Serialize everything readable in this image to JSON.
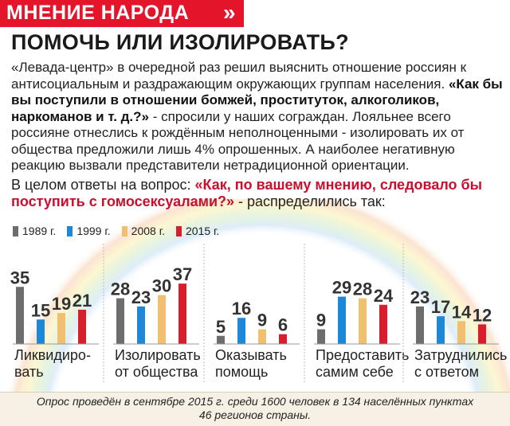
{
  "header": {
    "section": "МНЕНИЕ НАРОДА",
    "arrow": "»"
  },
  "headline": "ПОМОЧЬ ИЛИ ИЗОЛИРОВАТЬ?",
  "lead": {
    "part1": "«Левада-центр» в очередной раз решил выяснить отношение россиян к антисоциальным и раздражающим окружающих группам населения. ",
    "quote": "«Как бы вы поступили в отношении бомжей, проституток, алкоголиков, наркоманов и т. д.?»",
    "part2": " - спросили у наших сограждан. Лояльнее всего россияне отнеслись к рождённым неполноценными - изолировать их от общества предложили лишь 4% опрошенных. А наиболее негативную реакцию вызвали представители нетрадиционной ориентации."
  },
  "question": {
    "intro": "В целом ответы на вопрос: ",
    "quote": "«Как, по вашему мнению, следовало бы поступить с гомосексуалами?»",
    "outro": " - распределились так:"
  },
  "colors": {
    "accent": "#e4142b",
    "1989": "#6d6d6d",
    "1999": "#1e88d8",
    "2008": "#f0c070",
    "2015": "#d81e2c"
  },
  "chart_data": {
    "type": "bar",
    "series": [
      {
        "name": "1989 г.",
        "color": "#6d6d6d",
        "values": [
          35,
          28,
          5,
          9,
          23
        ]
      },
      {
        "name": "1999 г.",
        "color": "#1e88d8",
        "values": [
          15,
          23,
          16,
          29,
          17
        ]
      },
      {
        "name": "2008 г.",
        "color": "#f0c070",
        "values": [
          19,
          30,
          9,
          28,
          14
        ]
      },
      {
        "name": "2015 г.",
        "color": "#d81e2c",
        "values": [
          21,
          37,
          6,
          24,
          12
        ]
      }
    ],
    "categories": [
      [
        "Ликвидиро-",
        "вать"
      ],
      [
        "Изолировать",
        "от общества"
      ],
      [
        "Оказывать",
        "помощь"
      ],
      [
        "Предоставить",
        "самим себе"
      ],
      [
        "Затруднились",
        "с ответом"
      ]
    ],
    "legend_position": "top-left",
    "grid": false
  },
  "footnote": {
    "line1": "Опрос проведён в сентябре 2015 г. среди 1600 человек в 134 населённых пунктах",
    "line2": "46 регионов страны."
  }
}
